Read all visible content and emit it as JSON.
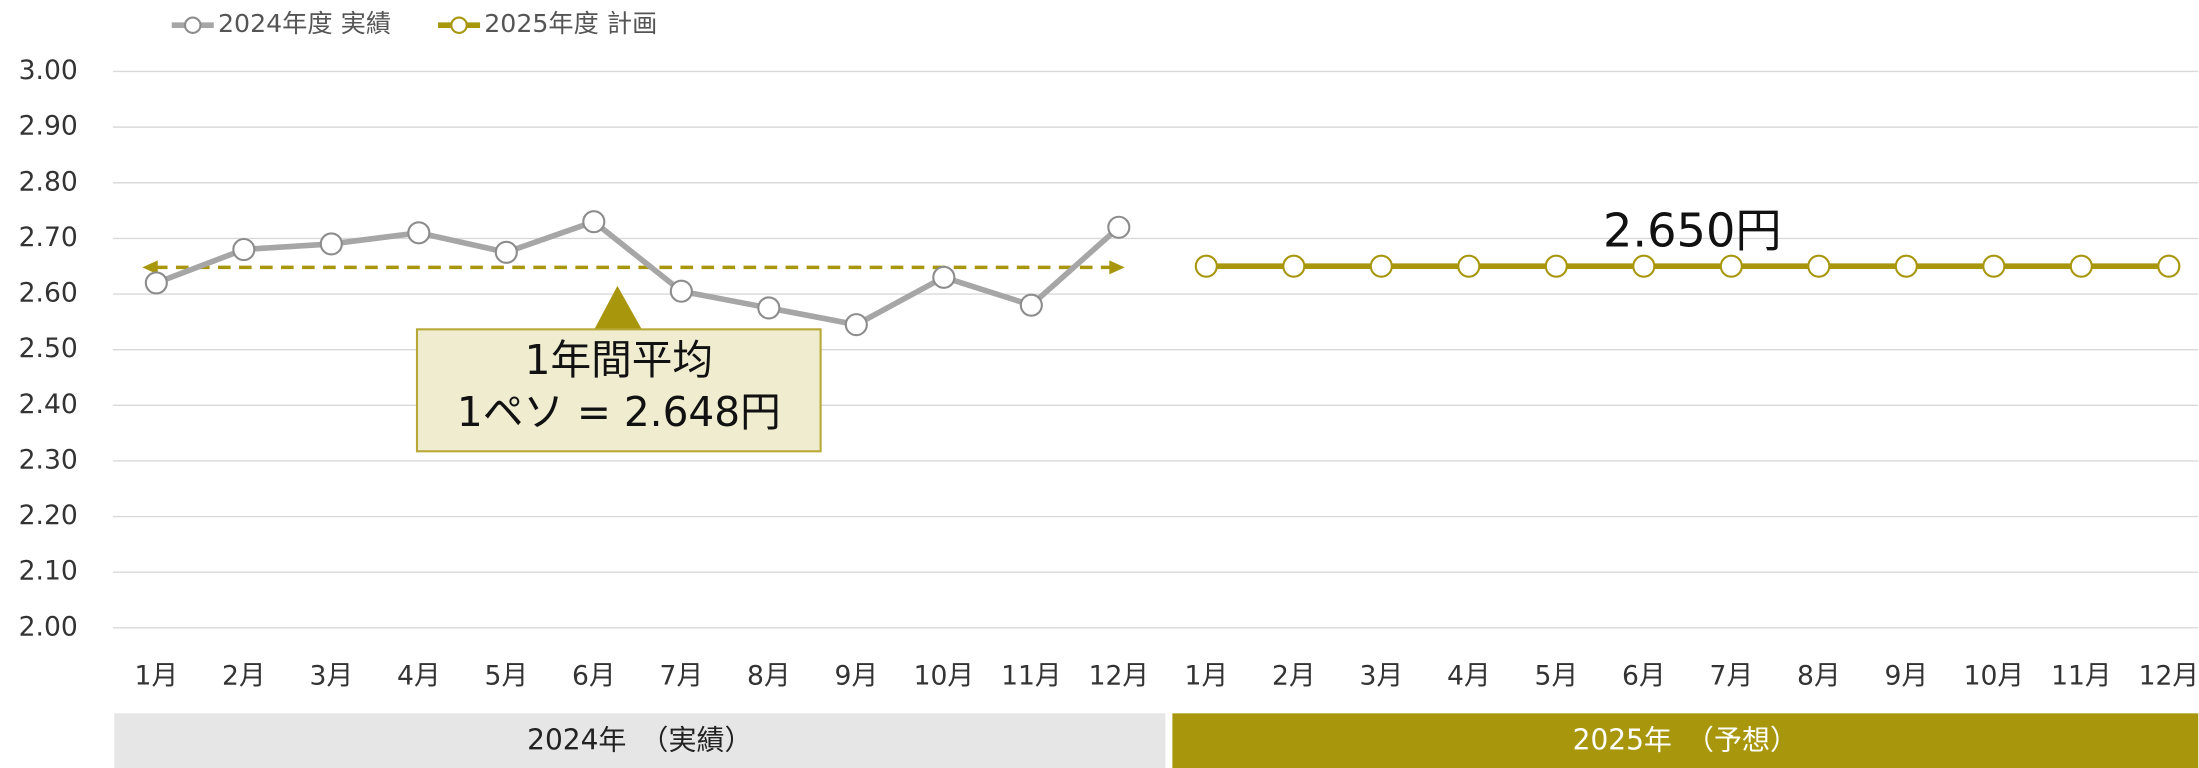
{
  "chart_data": {
    "type": "line",
    "categories": [
      "1月",
      "2月",
      "3月",
      "4月",
      "5月",
      "6月",
      "7月",
      "8月",
      "9月",
      "10月",
      "11月",
      "12月",
      "1月",
      "2月",
      "3月",
      "4月",
      "5月",
      "6月",
      "7月",
      "8月",
      "9月",
      "10月",
      "11月",
      "12月"
    ],
    "series": [
      {
        "name": "2024年度 実績",
        "color": "#a6a6a6",
        "values": [
          2.62,
          2.68,
          2.69,
          2.71,
          2.675,
          2.73,
          2.605,
          2.575,
          2.545,
          2.63,
          2.58,
          2.72,
          null,
          null,
          null,
          null,
          null,
          null,
          null,
          null,
          null,
          null,
          null,
          null
        ]
      },
      {
        "name": "2025年度 計画",
        "color": "#a8960c",
        "values": [
          null,
          null,
          null,
          null,
          null,
          null,
          null,
          null,
          null,
          null,
          null,
          null,
          2.65,
          2.65,
          2.65,
          2.65,
          2.65,
          2.65,
          2.65,
          2.65,
          2.65,
          2.65,
          2.65,
          2.65
        ]
      }
    ],
    "ylim": [
      2.0,
      3.0
    ],
    "yticks": [
      {
        "value": 2.0,
        "label": "2.00"
      },
      {
        "value": 2.1,
        "label": "2.10"
      },
      {
        "value": 2.2,
        "label": "2.20"
      },
      {
        "value": 2.3,
        "label": "2.30"
      },
      {
        "value": 2.4,
        "label": "2.40"
      },
      {
        "value": 2.5,
        "label": "2.50"
      },
      {
        "value": 2.6,
        "label": "2.60"
      },
      {
        "value": 2.7,
        "label": "2.70"
      },
      {
        "value": 2.8,
        "label": "2.80"
      },
      {
        "value": 2.9,
        "label": "2.90"
      },
      {
        "value": 3.0,
        "label": "3.00"
      }
    ],
    "grid": true,
    "legend": "top-left",
    "average": {
      "value": 2.648,
      "line1": "1年間平均",
      "line2": "1ペソ = 2.648円",
      "color": "#a8960c"
    },
    "plan_label": {
      "value": 2.65,
      "label": "2.650円"
    },
    "periods": [
      {
        "label": "2024年　（実績）",
        "color": "#e6e6e6"
      },
      {
        "label": "2025年　（予想）",
        "color": "#a8960c"
      }
    ]
  }
}
